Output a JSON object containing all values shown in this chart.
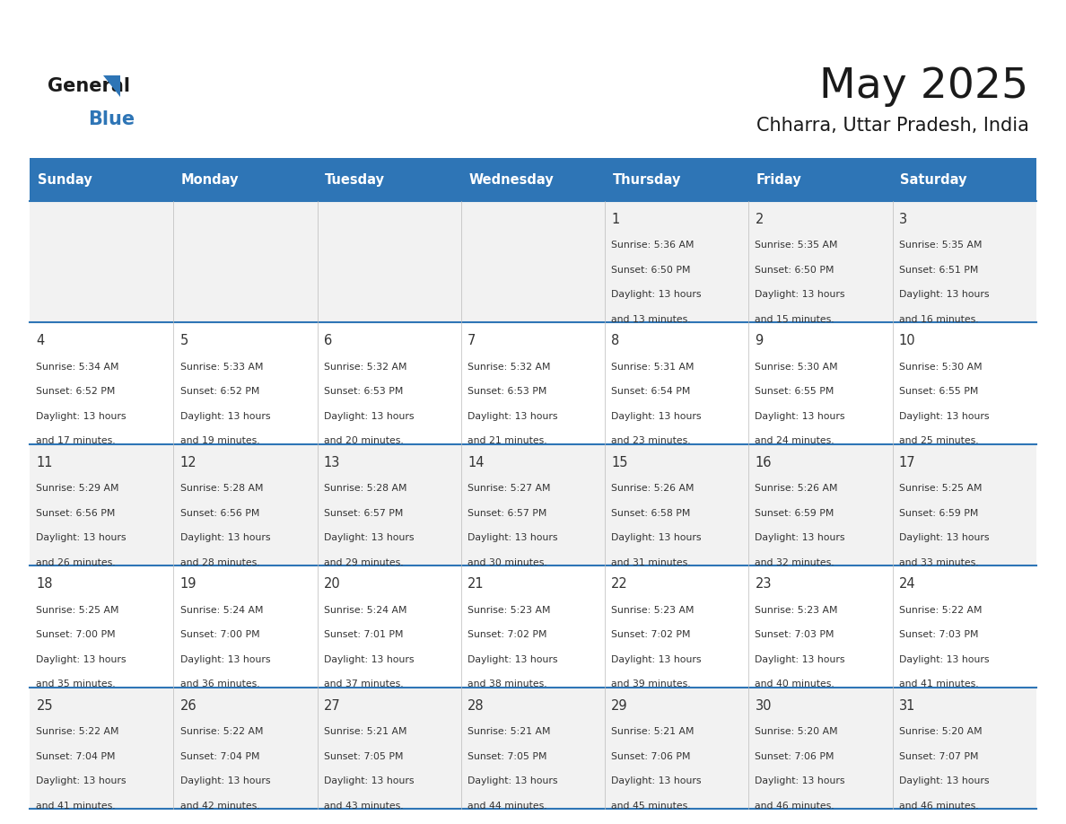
{
  "title": "May 2025",
  "subtitle": "Chharra, Uttar Pradesh, India",
  "header_bg": "#2E75B6",
  "header_text_color": "#FFFFFF",
  "day_names": [
    "Sunday",
    "Monday",
    "Tuesday",
    "Wednesday",
    "Thursday",
    "Friday",
    "Saturday"
  ],
  "row_bg_even": "#F2F2F2",
  "row_bg_odd": "#FFFFFF",
  "border_color": "#2E75B6",
  "text_color": "#333333",
  "days": [
    {
      "day": 1,
      "col": 4,
      "row": 0,
      "sunrise": "5:36 AM",
      "sunset": "6:50 PM",
      "daylight_hours": 13,
      "daylight_minutes": 13
    },
    {
      "day": 2,
      "col": 5,
      "row": 0,
      "sunrise": "5:35 AM",
      "sunset": "6:50 PM",
      "daylight_hours": 13,
      "daylight_minutes": 15
    },
    {
      "day": 3,
      "col": 6,
      "row": 0,
      "sunrise": "5:35 AM",
      "sunset": "6:51 PM",
      "daylight_hours": 13,
      "daylight_minutes": 16
    },
    {
      "day": 4,
      "col": 0,
      "row": 1,
      "sunrise": "5:34 AM",
      "sunset": "6:52 PM",
      "daylight_hours": 13,
      "daylight_minutes": 17
    },
    {
      "day": 5,
      "col": 1,
      "row": 1,
      "sunrise": "5:33 AM",
      "sunset": "6:52 PM",
      "daylight_hours": 13,
      "daylight_minutes": 19
    },
    {
      "day": 6,
      "col": 2,
      "row": 1,
      "sunrise": "5:32 AM",
      "sunset": "6:53 PM",
      "daylight_hours": 13,
      "daylight_minutes": 20
    },
    {
      "day": 7,
      "col": 3,
      "row": 1,
      "sunrise": "5:32 AM",
      "sunset": "6:53 PM",
      "daylight_hours": 13,
      "daylight_minutes": 21
    },
    {
      "day": 8,
      "col": 4,
      "row": 1,
      "sunrise": "5:31 AM",
      "sunset": "6:54 PM",
      "daylight_hours": 13,
      "daylight_minutes": 23
    },
    {
      "day": 9,
      "col": 5,
      "row": 1,
      "sunrise": "5:30 AM",
      "sunset": "6:55 PM",
      "daylight_hours": 13,
      "daylight_minutes": 24
    },
    {
      "day": 10,
      "col": 6,
      "row": 1,
      "sunrise": "5:30 AM",
      "sunset": "6:55 PM",
      "daylight_hours": 13,
      "daylight_minutes": 25
    },
    {
      "day": 11,
      "col": 0,
      "row": 2,
      "sunrise": "5:29 AM",
      "sunset": "6:56 PM",
      "daylight_hours": 13,
      "daylight_minutes": 26
    },
    {
      "day": 12,
      "col": 1,
      "row": 2,
      "sunrise": "5:28 AM",
      "sunset": "6:56 PM",
      "daylight_hours": 13,
      "daylight_minutes": 28
    },
    {
      "day": 13,
      "col": 2,
      "row": 2,
      "sunrise": "5:28 AM",
      "sunset": "6:57 PM",
      "daylight_hours": 13,
      "daylight_minutes": 29
    },
    {
      "day": 14,
      "col": 3,
      "row": 2,
      "sunrise": "5:27 AM",
      "sunset": "6:57 PM",
      "daylight_hours": 13,
      "daylight_minutes": 30
    },
    {
      "day": 15,
      "col": 4,
      "row": 2,
      "sunrise": "5:26 AM",
      "sunset": "6:58 PM",
      "daylight_hours": 13,
      "daylight_minutes": 31
    },
    {
      "day": 16,
      "col": 5,
      "row": 2,
      "sunrise": "5:26 AM",
      "sunset": "6:59 PM",
      "daylight_hours": 13,
      "daylight_minutes": 32
    },
    {
      "day": 17,
      "col": 6,
      "row": 2,
      "sunrise": "5:25 AM",
      "sunset": "6:59 PM",
      "daylight_hours": 13,
      "daylight_minutes": 33
    },
    {
      "day": 18,
      "col": 0,
      "row": 3,
      "sunrise": "5:25 AM",
      "sunset": "7:00 PM",
      "daylight_hours": 13,
      "daylight_minutes": 35
    },
    {
      "day": 19,
      "col": 1,
      "row": 3,
      "sunrise": "5:24 AM",
      "sunset": "7:00 PM",
      "daylight_hours": 13,
      "daylight_minutes": 36
    },
    {
      "day": 20,
      "col": 2,
      "row": 3,
      "sunrise": "5:24 AM",
      "sunset": "7:01 PM",
      "daylight_hours": 13,
      "daylight_minutes": 37
    },
    {
      "day": 21,
      "col": 3,
      "row": 3,
      "sunrise": "5:23 AM",
      "sunset": "7:02 PM",
      "daylight_hours": 13,
      "daylight_minutes": 38
    },
    {
      "day": 22,
      "col": 4,
      "row": 3,
      "sunrise": "5:23 AM",
      "sunset": "7:02 PM",
      "daylight_hours": 13,
      "daylight_minutes": 39
    },
    {
      "day": 23,
      "col": 5,
      "row": 3,
      "sunrise": "5:23 AM",
      "sunset": "7:03 PM",
      "daylight_hours": 13,
      "daylight_minutes": 40
    },
    {
      "day": 24,
      "col": 6,
      "row": 3,
      "sunrise": "5:22 AM",
      "sunset": "7:03 PM",
      "daylight_hours": 13,
      "daylight_minutes": 41
    },
    {
      "day": 25,
      "col": 0,
      "row": 4,
      "sunrise": "5:22 AM",
      "sunset": "7:04 PM",
      "daylight_hours": 13,
      "daylight_minutes": 41
    },
    {
      "day": 26,
      "col": 1,
      "row": 4,
      "sunrise": "5:22 AM",
      "sunset": "7:04 PM",
      "daylight_hours": 13,
      "daylight_minutes": 42
    },
    {
      "day": 27,
      "col": 2,
      "row": 4,
      "sunrise": "5:21 AM",
      "sunset": "7:05 PM",
      "daylight_hours": 13,
      "daylight_minutes": 43
    },
    {
      "day": 28,
      "col": 3,
      "row": 4,
      "sunrise": "5:21 AM",
      "sunset": "7:05 PM",
      "daylight_hours": 13,
      "daylight_minutes": 44
    },
    {
      "day": 29,
      "col": 4,
      "row": 4,
      "sunrise": "5:21 AM",
      "sunset": "7:06 PM",
      "daylight_hours": 13,
      "daylight_minutes": 45
    },
    {
      "day": 30,
      "col": 5,
      "row": 4,
      "sunrise": "5:20 AM",
      "sunset": "7:06 PM",
      "daylight_hours": 13,
      "daylight_minutes": 46
    },
    {
      "day": 31,
      "col": 6,
      "row": 4,
      "sunrise": "5:20 AM",
      "sunset": "7:07 PM",
      "daylight_hours": 13,
      "daylight_minutes": 46
    }
  ]
}
